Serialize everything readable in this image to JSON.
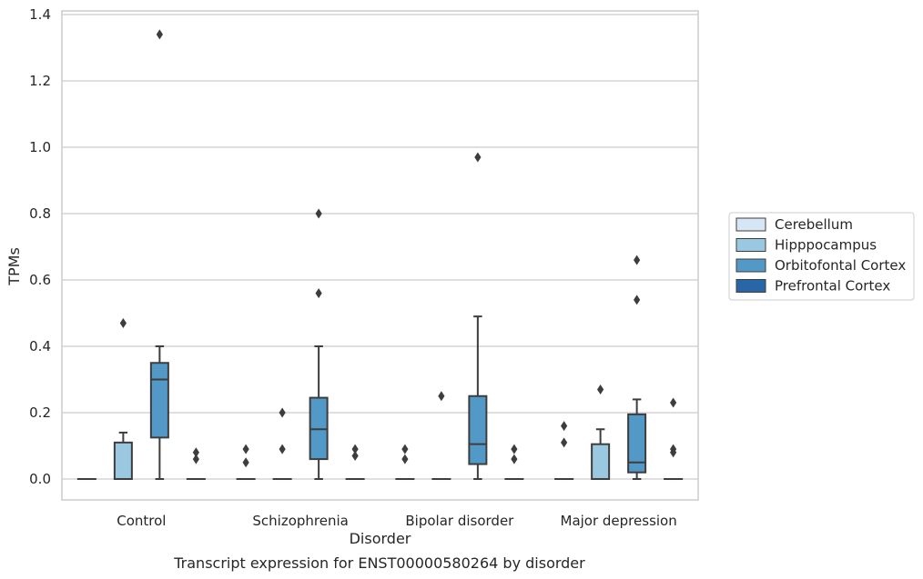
{
  "chart_data": {
    "type": "boxplot",
    "title": "Transcript expression for ENST00000580264 by disorder",
    "xlabel": "Disorder",
    "ylabel": "TPMs",
    "ylim": [
      -0.065,
      1.41
    ],
    "yticks": [
      0.0,
      0.2,
      0.4,
      0.6,
      0.8,
      1.0,
      1.2,
      1.4
    ],
    "ytick_labels": [
      "0.0",
      "0.2",
      "0.4",
      "0.6",
      "0.8",
      "1.0",
      "1.2",
      "1.4"
    ],
    "grid": "horizontal",
    "legend_position": "right",
    "categories": [
      "Control",
      "Schizophrenia",
      "Bipolar disorder",
      "Major depression"
    ],
    "series": [
      {
        "name": "Cerebellum",
        "color": "#d6e6f4",
        "boxes": [
          {
            "q1": 0.0,
            "median": 0.0,
            "q3": 0.0,
            "whislo": 0.0,
            "whishi": 0.0,
            "fliers": []
          },
          {
            "q1": 0.0,
            "median": 0.0,
            "q3": 0.0,
            "whislo": 0.0,
            "whishi": 0.0,
            "fliers": [
              0.05,
              0.09
            ]
          },
          {
            "q1": 0.0,
            "median": 0.0,
            "q3": 0.0,
            "whislo": 0.0,
            "whishi": 0.0,
            "fliers": [
              0.06,
              0.09
            ]
          },
          {
            "q1": 0.0,
            "median": 0.0,
            "q3": 0.0,
            "whislo": 0.0,
            "whishi": 0.0,
            "fliers": [
              0.11,
              0.16
            ]
          }
        ]
      },
      {
        "name": "Hipppocampus",
        "color": "#9ac8e0",
        "boxes": [
          {
            "q1": 0.0,
            "median": 0.0,
            "q3": 0.11,
            "whislo": 0.0,
            "whishi": 0.14,
            "fliers": [
              0.47
            ]
          },
          {
            "q1": 0.0,
            "median": 0.0,
            "q3": 0.0,
            "whislo": 0.0,
            "whishi": 0.0,
            "fliers": [
              0.09,
              0.2
            ]
          },
          {
            "q1": 0.0,
            "median": 0.0,
            "q3": 0.0,
            "whislo": 0.0,
            "whishi": 0.0,
            "fliers": [
              0.25
            ]
          },
          {
            "q1": 0.0,
            "median": 0.0,
            "q3": 0.105,
            "whislo": 0.0,
            "whishi": 0.15,
            "fliers": [
              0.27
            ]
          }
        ]
      },
      {
        "name": "Orbitofontal Cortex",
        "color": "#5399c7",
        "boxes": [
          {
            "q1": 0.125,
            "median": 0.3,
            "q3": 0.35,
            "whislo": 0.0,
            "whishi": 0.4,
            "fliers": [
              1.34
            ]
          },
          {
            "q1": 0.06,
            "median": 0.15,
            "q3": 0.245,
            "whislo": 0.0,
            "whishi": 0.4,
            "fliers": [
              0.56,
              0.8
            ]
          },
          {
            "q1": 0.045,
            "median": 0.105,
            "q3": 0.25,
            "whislo": 0.0,
            "whishi": 0.49,
            "fliers": [
              0.97
            ]
          },
          {
            "q1": 0.02,
            "median": 0.05,
            "q3": 0.195,
            "whislo": 0.0,
            "whishi": 0.24,
            "fliers": [
              0.54,
              0.66
            ]
          }
        ]
      },
      {
        "name": "Prefrontal Cortex",
        "color": "#2866a8",
        "boxes": [
          {
            "q1": 0.0,
            "median": 0.0,
            "q3": 0.0,
            "whislo": 0.0,
            "whishi": 0.0,
            "fliers": [
              0.06,
              0.08
            ]
          },
          {
            "q1": 0.0,
            "median": 0.0,
            "q3": 0.0,
            "whislo": 0.0,
            "whishi": 0.0,
            "fliers": [
              0.07,
              0.09
            ]
          },
          {
            "q1": 0.0,
            "median": 0.0,
            "q3": 0.0,
            "whislo": 0.0,
            "whishi": 0.0,
            "fliers": [
              0.06,
              0.09
            ]
          },
          {
            "q1": 0.0,
            "median": 0.0,
            "q3": 0.0,
            "whislo": 0.0,
            "whishi": 0.0,
            "fliers": [
              0.08,
              0.09,
              0.23
            ]
          }
        ]
      }
    ],
    "colors": {
      "grid": "#cccccc",
      "frame": "#cccccc",
      "box_edge": "#3d3d3d"
    }
  }
}
